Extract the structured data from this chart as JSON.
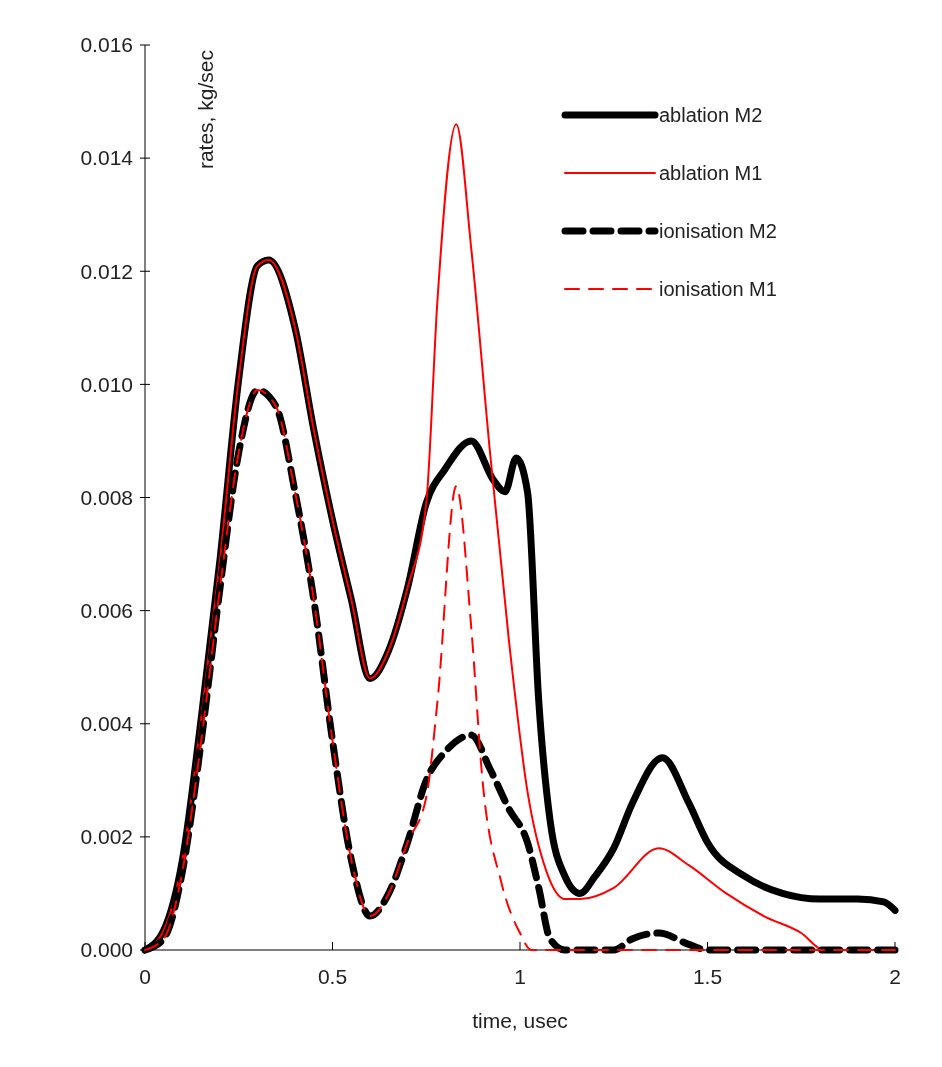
{
  "chart_data": {
    "type": "line",
    "xlabel": "time, usec",
    "ylabel": "rates, kg/sec",
    "xlim": [
      0,
      2
    ],
    "xticks": [
      0,
      0.5,
      1,
      1.5,
      2
    ],
    "ylim": [
      0,
      0.016
    ],
    "yticks": [
      {
        "value": 0,
        "label": "0.000"
      },
      {
        "value": 0.002,
        "label": "0.002"
      },
      {
        "value": 0.004,
        "label": "0.004"
      },
      {
        "value": 0.006,
        "label": "0.006"
      },
      {
        "value": 0.008,
        "label": "0.008"
      },
      {
        "value": 0.01,
        "label": "0.010"
      },
      {
        "value": 0.012,
        "label": "0.012"
      },
      {
        "value": 0.014,
        "label": "0.014"
      },
      {
        "value": 0.016,
        "label": "0.016"
      }
    ],
    "grid": false,
    "legend": "top right",
    "series": [
      {
        "name": "ablation M2",
        "color": "#000000",
        "line_style": "solid",
        "x": [
          0,
          0.05,
          0.1,
          0.15,
          0.2,
          0.25,
          0.3,
          0.33,
          0.4,
          0.45,
          0.5,
          0.55,
          0.6,
          0.65,
          0.7,
          0.75,
          0.8,
          0.87,
          0.93,
          0.96,
          0.99,
          1.02,
          1.05,
          1.08,
          1.12,
          1.16,
          1.2,
          1.25,
          1.3,
          1.38,
          1.45,
          1.5,
          1.6,
          1.7,
          1.8,
          1.9,
          1.97,
          2
        ],
        "values": [
          0,
          0.00035,
          0.0016,
          0.0041,
          0.0069,
          0.0101,
          0.0121,
          0.0122,
          0.011,
          0.0092,
          0.0076,
          0.0062,
          0.0048,
          0.0053,
          0.0064,
          0.0079,
          0.0085,
          0.009,
          0.0083,
          0.0081,
          0.0087,
          0.0081,
          0.0044,
          0.0023,
          0.0013,
          0.001,
          0.0013,
          0.0018,
          0.0026,
          0.0034,
          0.0026,
          0.0019,
          0.0013,
          0.001,
          0.0009,
          0.0009,
          0.00085,
          0.0007
        ]
      },
      {
        "name": "ablation M1",
        "color": "#ff0000",
        "line_style": "solid",
        "x": [
          0,
          0.05,
          0.1,
          0.15,
          0.2,
          0.25,
          0.3,
          0.33,
          0.4,
          0.45,
          0.5,
          0.55,
          0.6,
          0.65,
          0.7,
          0.75,
          0.78,
          0.83,
          0.87,
          0.92,
          0.97,
          1.02,
          1.07,
          1.12,
          1.16,
          1.25,
          1.37,
          1.45,
          1.55,
          1.65,
          1.75,
          1.81,
          2
        ],
        "values": [
          0,
          0.00035,
          0.0016,
          0.0041,
          0.0069,
          0.0101,
          0.0121,
          0.0122,
          0.011,
          0.0092,
          0.0076,
          0.0062,
          0.0048,
          0.0053,
          0.0064,
          0.0079,
          0.0115,
          0.0146,
          0.0124,
          0.0088,
          0.0055,
          0.0028,
          0.0014,
          0.0009,
          0.0009,
          0.0011,
          0.0018,
          0.0015,
          0.001,
          0.0006,
          0.0003,
          0,
          0
        ]
      },
      {
        "name": "ionisation M2",
        "color": "#000000",
        "line_style": "dashed",
        "x": [
          0,
          0.05,
          0.1,
          0.15,
          0.2,
          0.25,
          0.3,
          0.35,
          0.4,
          0.45,
          0.5,
          0.55,
          0.6,
          0.65,
          0.7,
          0.75,
          0.8,
          0.87,
          0.92,
          0.97,
          1.02,
          1.05,
          1.08,
          1.12,
          1.25,
          1.3,
          1.37,
          1.45,
          1.5,
          2
        ],
        "values": [
          0,
          0.0002,
          0.0014,
          0.0037,
          0.0064,
          0.0088,
          0.0099,
          0.0096,
          0.0081,
          0.0062,
          0.0037,
          0.0016,
          0.0006,
          0.001,
          0.0019,
          0.003,
          0.0035,
          0.0038,
          0.0032,
          0.0025,
          0.0019,
          0.0011,
          0.0002,
          0,
          0,
          0.0002,
          0.0003,
          0.0001,
          0,
          0
        ]
      },
      {
        "name": "ionisation M1",
        "color": "#ff0000",
        "line_style": "dashed",
        "x": [
          0,
          0.05,
          0.1,
          0.15,
          0.2,
          0.25,
          0.3,
          0.35,
          0.4,
          0.45,
          0.5,
          0.55,
          0.6,
          0.65,
          0.7,
          0.75,
          0.78,
          0.83,
          0.87,
          0.9,
          0.95,
          1,
          1.03,
          2
        ],
        "values": [
          0,
          0.0002,
          0.0014,
          0.0037,
          0.0064,
          0.0088,
          0.0099,
          0.0096,
          0.0081,
          0.0062,
          0.0037,
          0.0016,
          0.0006,
          0.001,
          0.0019,
          0.0027,
          0.0044,
          0.0082,
          0.0057,
          0.003,
          0.0012,
          0.0003,
          0,
          0
        ]
      }
    ]
  }
}
